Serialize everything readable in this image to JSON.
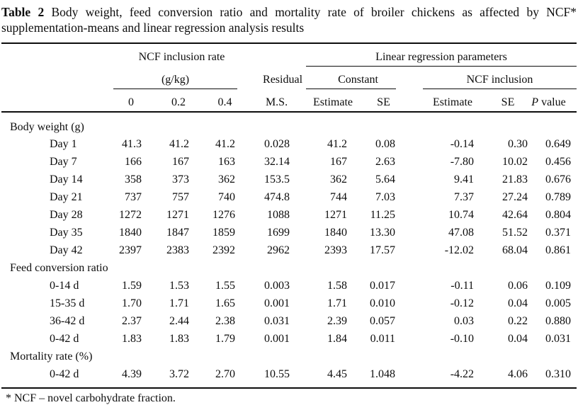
{
  "title": {
    "label": "Table 2",
    "line1_rest": "Body weight, feed conversion ratio and mortality rate of broiler chickens as affected by NCF* supplementation-means and linear regression analysis results",
    "line1_display": "Body weight, feed conversion ratio and mortality rate of broiler chickens as affected by NCF*",
    "line2_display": "supplementation-means and linear regression analysis results"
  },
  "header": {
    "group_rate": "NCF inclusion rate",
    "group_rate_unit": "(g/kg)",
    "group_regression": "Linear regression parameters",
    "residual_line1": "Residual",
    "residual_line2": "M.S.",
    "constant": "Constant",
    "ncf_inclusion": "NCF inclusion",
    "rate_0": "0",
    "rate_02": "0.2",
    "rate_04": "0.4",
    "estimate_constant": "Estimate",
    "se_constant": "SE",
    "estimate_ncf": "Estimate",
    "se_ncf": "SE",
    "p_italic": "P",
    "p_rest": " value"
  },
  "sections": [
    {
      "label": "Body weight (g)",
      "rows": [
        {
          "label": "Day 1",
          "values": [
            "41.3",
            "41.2",
            "41.2",
            "0.028",
            "41.2",
            "0.08",
            "-0.14",
            "0.30",
            "0.649"
          ]
        },
        {
          "label": "Day 7",
          "values": [
            "166",
            "167",
            "163",
            "32.14",
            "167",
            "2.63",
            "-7.80",
            "10.02",
            "0.456"
          ]
        },
        {
          "label": "Day 14",
          "values": [
            "358",
            "373",
            "362",
            "153.5",
            "362",
            "5.64",
            "9.41",
            "21.83",
            "0.676"
          ]
        },
        {
          "label": "Day 21",
          "values": [
            "737",
            "757",
            "740",
            "474.8",
            "744",
            "7.03",
            "7.37",
            "27.24",
            "0.789"
          ]
        },
        {
          "label": "Day 28",
          "values": [
            "1272",
            "1271",
            "1276",
            "1088",
            "1271",
            "11.25",
            "10.74",
            "42.64",
            "0.804"
          ]
        },
        {
          "label": "Day 35",
          "values": [
            "1840",
            "1847",
            "1859",
            "1699",
            "1840",
            "13.30",
            "47.08",
            "51.52",
            "0.371"
          ]
        },
        {
          "label": "Day 42",
          "values": [
            "2397",
            "2383",
            "2392",
            "2962",
            "2393",
            "17.57",
            "-12.02",
            "68.04",
            "0.861"
          ]
        }
      ]
    },
    {
      "label": "Feed conversion ratio",
      "rows": [
        {
          "label": "0-14 d",
          "values": [
            "1.59",
            "1.53",
            "1.55",
            "0.003",
            "1.58",
            "0.017",
            "-0.11",
            "0.06",
            "0.109"
          ]
        },
        {
          "label": "15-35 d",
          "values": [
            "1.70",
            "1.71",
            "1.65",
            "0.001",
            "1.71",
            "0.010",
            "-0.12",
            "0.04",
            "0.005"
          ]
        },
        {
          "label": "36-42 d",
          "values": [
            "2.37",
            "2.44",
            "2.38",
            "0.031",
            "2.39",
            "0.057",
            "0.03",
            "0.22",
            "0.880"
          ]
        },
        {
          "label": "0-42 d",
          "values": [
            "1.83",
            "1.83",
            "1.79",
            "0.001",
            "1.84",
            "0.011",
            "-0.10",
            "0.04",
            "0.031"
          ]
        }
      ]
    },
    {
      "label": "Mortality rate (%)",
      "rows": [
        {
          "label": "0-42 d",
          "values": [
            "4.39",
            "3.72",
            "2.70",
            "10.55",
            "4.45",
            "1.048",
            "-4.22",
            "4.06",
            "0.310"
          ]
        }
      ]
    }
  ],
  "footnote": "* NCF – novel carbohydrate fraction."
}
